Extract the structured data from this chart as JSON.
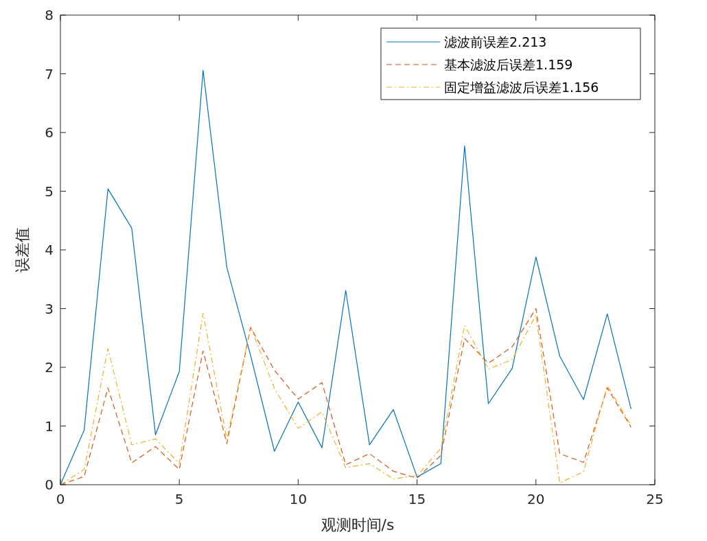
{
  "chart_data": {
    "type": "line",
    "xlabel": "观测时间/s",
    "ylabel": "误差值",
    "x": [
      0,
      1,
      2,
      3,
      4,
      5,
      6,
      7,
      8,
      9,
      10,
      11,
      12,
      13,
      14,
      15,
      16,
      17,
      18,
      19,
      20,
      21,
      22,
      23,
      24
    ],
    "series": [
      {
        "name": "滤波前误差2.213",
        "color": "#0072bd",
        "line_style": "solid",
        "values": [
          0,
          0.93,
          5.04,
          4.37,
          0.85,
          1.93,
          7.06,
          3.7,
          2.2,
          0.57,
          1.41,
          0.63,
          3.31,
          0.68,
          1.28,
          0.13,
          0.36,
          5.77,
          1.38,
          1.98,
          3.88,
          2.19,
          1.45,
          2.91,
          1.29
        ]
      },
      {
        "name": "基本滤波后误差1.159",
        "color": "#d95319",
        "line_style": "dashed",
        "values": [
          0,
          0.14,
          1.65,
          0.37,
          0.65,
          0.26,
          2.28,
          0.7,
          2.68,
          1.95,
          1.46,
          1.74,
          0.34,
          0.53,
          0.23,
          0.11,
          0.5,
          2.49,
          2.07,
          2.35,
          3.0,
          0.53,
          0.38,
          1.65,
          0.98
        ]
      },
      {
        "name": "固定增益滤波后误差1.156",
        "color": "#edb120",
        "line_style": "dashdot",
        "values": [
          0,
          0.26,
          2.32,
          0.68,
          0.78,
          0.36,
          2.92,
          0.77,
          2.69,
          1.64,
          0.96,
          1.24,
          0.29,
          0.36,
          0.1,
          0.15,
          0.62,
          2.71,
          1.97,
          2.13,
          2.89,
          0.03,
          0.22,
          1.69,
          1.01
        ]
      }
    ],
    "xlim": [
      0,
      25
    ],
    "xticks": [
      0,
      5,
      10,
      15,
      20,
      25
    ],
    "ylim": [
      0,
      8
    ],
    "yticks": [
      0,
      1,
      2,
      3,
      4,
      5,
      6,
      7,
      8
    ],
    "grid": false,
    "legend": "top right",
    "marker": "none"
  }
}
